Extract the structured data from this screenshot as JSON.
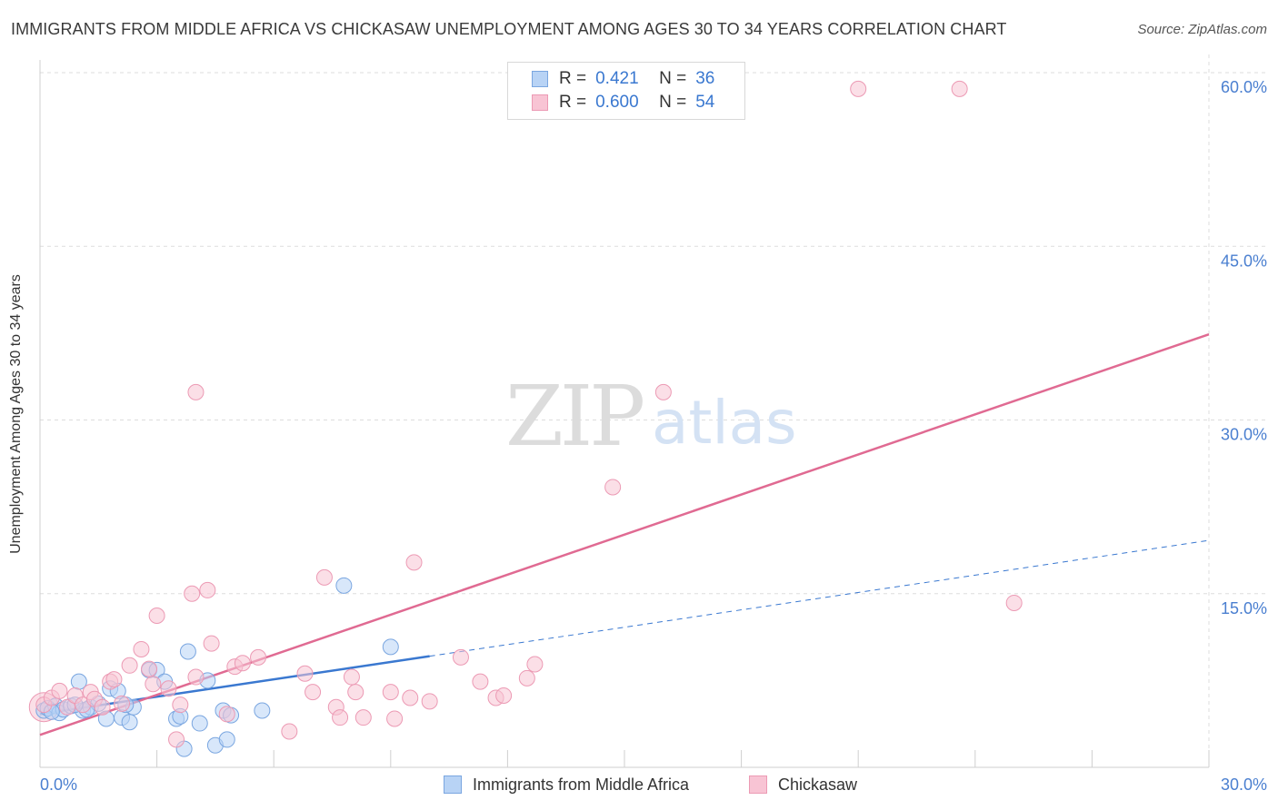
{
  "title": "IMMIGRANTS FROM MIDDLE AFRICA VS CHICKASAW UNEMPLOYMENT AMONG AGES 30 TO 34 YEARS CORRELATION CHART",
  "source": "Source: ZipAtlas.com",
  "watermark": {
    "zip": "ZIP",
    "atlas": "atlas"
  },
  "legend": {
    "r_label": "R =",
    "n_label": "N =",
    "series": [
      {
        "r": "0.421",
        "n": "36"
      },
      {
        "r": "0.600",
        "n": "54"
      }
    ]
  },
  "colors": {
    "blue_fill": "#b8d3f5",
    "blue_stroke": "#7aa6e0",
    "blue_line": "#3a78d0",
    "pink_fill": "#f8c4d4",
    "pink_stroke": "#ec9ab4",
    "pink_line": "#e06a92",
    "tick_text": "#4a7fd0",
    "grid": "#dddddd"
  },
  "chart_data": {
    "type": "scatter",
    "title": "IMMIGRANTS FROM MIDDLE AFRICA VS CHICKASAW UNEMPLOYMENT AMONG AGES 30 TO 34 YEARS CORRELATION CHART",
    "xlabel": "",
    "ylabel": "Unemployment Among Ages 30 to 34 years",
    "xlim": [
      0,
      30
    ],
    "ylim": [
      0,
      60
    ],
    "x_tick_labels": [
      "0.0%",
      "30.0%"
    ],
    "y_ticks": [
      15,
      30,
      45,
      60
    ],
    "y_tick_labels": [
      "15.0%",
      "30.0%",
      "45.0%",
      "60.0%"
    ],
    "legend_position": "bottom-center",
    "series": [
      {
        "name": "Immigrants from Middle Africa",
        "r": 0.421,
        "n": 36,
        "trend": {
          "x0": 0,
          "y0": 4.6,
          "x1": 30,
          "y1": 19.6,
          "solid_until": 10
        },
        "points": [
          [
            0.1,
            4.9
          ],
          [
            0.2,
            5.1
          ],
          [
            0.4,
            5.3
          ],
          [
            0.5,
            4.7
          ],
          [
            0.6,
            5.0
          ],
          [
            0.8,
            5.3
          ],
          [
            1.0,
            7.4
          ],
          [
            1.1,
            4.9
          ],
          [
            1.3,
            5.2
          ],
          [
            1.5,
            5.5
          ],
          [
            1.7,
            4.2
          ],
          [
            1.8,
            6.8
          ],
          [
            2.0,
            6.6
          ],
          [
            2.1,
            4.3
          ],
          [
            2.3,
            3.9
          ],
          [
            2.4,
            5.2
          ],
          [
            2.8,
            8.4
          ],
          [
            3.0,
            8.4
          ],
          [
            3.2,
            7.4
          ],
          [
            3.5,
            4.2
          ],
          [
            3.6,
            4.4
          ],
          [
            3.7,
            1.6
          ],
          [
            3.8,
            10.0
          ],
          [
            4.1,
            3.8
          ],
          [
            4.3,
            7.5
          ],
          [
            4.5,
            1.9
          ],
          [
            4.7,
            4.9
          ],
          [
            4.8,
            2.4
          ],
          [
            4.9,
            4.5
          ],
          [
            5.7,
            4.9
          ],
          [
            7.8,
            15.7
          ],
          [
            9.0,
            10.4
          ],
          [
            2.2,
            5.4
          ],
          [
            1.2,
            5.0
          ],
          [
            0.3,
            4.8
          ],
          [
            0.9,
            5.4
          ]
        ]
      },
      {
        "name": "Chickasaw",
        "r": 0.6,
        "n": 54,
        "trend": {
          "x0": 0,
          "y0": 2.8,
          "x1": 30,
          "y1": 37.4
        },
        "points": [
          [
            0.1,
            5.4
          ],
          [
            0.3,
            6.0
          ],
          [
            0.5,
            6.6
          ],
          [
            0.7,
            5.2
          ],
          [
            0.9,
            6.2
          ],
          [
            1.1,
            5.4
          ],
          [
            1.3,
            6.5
          ],
          [
            1.4,
            5.9
          ],
          [
            1.6,
            5.2
          ],
          [
            1.8,
            7.4
          ],
          [
            1.9,
            7.6
          ],
          [
            2.1,
            5.5
          ],
          [
            2.3,
            8.8
          ],
          [
            2.6,
            10.2
          ],
          [
            2.8,
            8.5
          ],
          [
            2.9,
            7.2
          ],
          [
            3.0,
            13.1
          ],
          [
            3.3,
            6.8
          ],
          [
            3.5,
            2.4
          ],
          [
            3.6,
            5.4
          ],
          [
            3.9,
            15.0
          ],
          [
            4.0,
            7.8
          ],
          [
            4.3,
            15.3
          ],
          [
            4.4,
            10.7
          ],
          [
            4.8,
            4.6
          ],
          [
            5.0,
            8.7
          ],
          [
            5.2,
            9.0
          ],
          [
            5.6,
            9.5
          ],
          [
            6.4,
            3.1
          ],
          [
            6.8,
            8.1
          ],
          [
            7.0,
            6.5
          ],
          [
            7.3,
            16.4
          ],
          [
            7.6,
            5.2
          ],
          [
            7.7,
            4.3
          ],
          [
            8.0,
            7.8
          ],
          [
            8.1,
            6.5
          ],
          [
            8.3,
            4.3
          ],
          [
            9.0,
            6.5
          ],
          [
            9.1,
            4.2
          ],
          [
            9.5,
            6.0
          ],
          [
            9.6,
            17.7
          ],
          [
            10.0,
            5.7
          ],
          [
            10.8,
            9.5
          ],
          [
            11.3,
            7.4
          ],
          [
            11.7,
            6.0
          ],
          [
            11.9,
            6.2
          ],
          [
            12.5,
            7.7
          ],
          [
            12.7,
            8.9
          ],
          [
            4.0,
            32.4
          ],
          [
            14.7,
            24.2
          ],
          [
            16.0,
            32.4
          ],
          [
            21.0,
            58.6
          ],
          [
            23.6,
            58.6
          ],
          [
            25.0,
            14.2
          ]
        ]
      }
    ]
  }
}
